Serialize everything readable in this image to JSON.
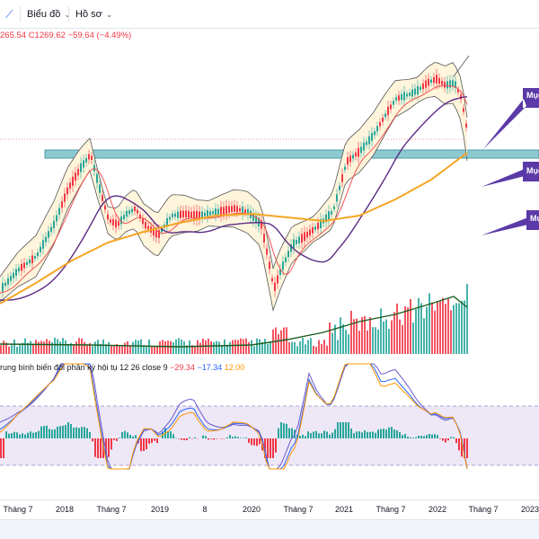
{
  "toolbar": {
    "chart_label": "Biểu đồ",
    "profile_label": "Hồ sơ"
  },
  "ohlc": {
    "text": "265.54  C1269.62  −59.64 (−4.49%)"
  },
  "indicator": {
    "name": "rung bình biến đổi phân kỳ hội tụ 12 26 close 9",
    "v1": "−29.34",
    "v2": "−17.34",
    "v3": "12.00",
    "v1_color": "#f23645",
    "v2_color": "#2962ff",
    "v3_color": "#ff9800"
  },
  "callouts": [
    {
      "text": "Mục"
    },
    {
      "text": "Mục"
    },
    {
      "text": "Mụ"
    }
  ],
  "time_axis": [
    "Tháng 7",
    "2018",
    "Tháng 7",
    "2019",
    "8",
    "2020",
    "Tháng 7",
    "2021",
    "Tháng 7",
    "2022",
    "Tháng 7",
    "2023"
  ],
  "colors": {
    "up": "#26a69a",
    "down": "#f23645",
    "ma_short": "#ef5350",
    "ma_long": "#f5a623",
    "ma_mid": "#5b2c83",
    "band_fill": "#fff5dc",
    "zone": "#8ccad1",
    "callout": "#5b3aa8",
    "macd_bg": "#ede7f6"
  }
}
